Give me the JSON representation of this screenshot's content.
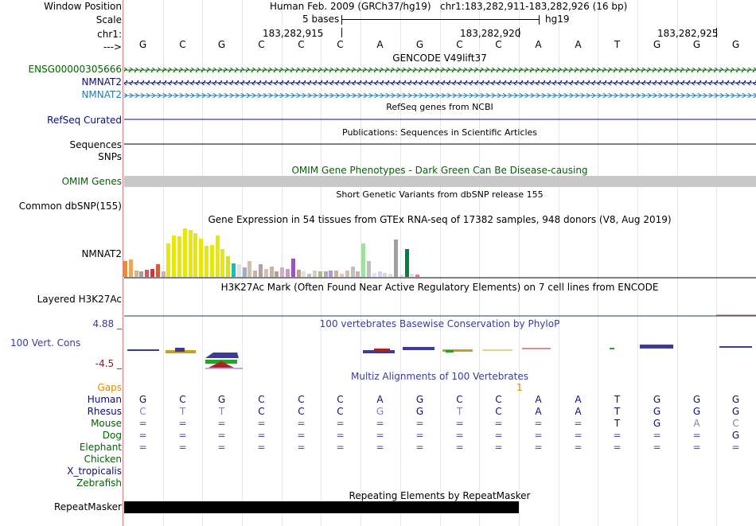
{
  "position": {
    "window_position_label": "Window Position",
    "assembly": "Human Feb. 2009 (GRCh37/hg19)",
    "coords": "chr1:183,282,911-183,282,926 (16 bp)",
    "scale_label": "Scale",
    "scale_value": "5 bases",
    "scale_assembly": "hg19",
    "chrom_label": "chr1:",
    "ticks": [
      "183,282,915",
      "183,282,920",
      "183,282,925"
    ],
    "strand_label": "--->"
  },
  "sequence": [
    "G",
    "C",
    "G",
    "C",
    "C",
    "C",
    "A",
    "G",
    "C",
    "C",
    "A",
    "A",
    "T",
    "G",
    "G",
    "G"
  ],
  "tracks": {
    "gencode": {
      "title": "GENCODE V49lift37",
      "items": [
        "ENSG00000305666",
        "NMNAT2",
        "NMNAT2"
      ],
      "colors": [
        "#006400",
        "#0c0c78",
        "#1e7fb4"
      ]
    },
    "refseq": {
      "title": "RefSeq genes from NCBI",
      "label": "RefSeq Curated"
    },
    "pubs": {
      "title": "Publications: Sequences in Scientific Articles",
      "label": "Sequences"
    },
    "snps": {
      "label": "SNPs"
    },
    "omim": {
      "title": "OMIM Gene Phenotypes - Dark Green Can Be Disease-causing",
      "label": "OMIM Genes",
      "color": "#006400"
    },
    "dbsnp": {
      "title": "Short Genetic Variants from dbSNP release 155",
      "label": "Common dbSNP(155)"
    },
    "gtex": {
      "title": "Gene Expression in 54 tissues from GTEx RNA-seq of 17382 samples, 948 donors (V8, Aug 2019)",
      "label": "NMNAT2",
      "values": [
        0.3,
        0.34,
        0.12,
        0.1,
        0.14,
        0.16,
        0.24,
        0.1,
        0.64,
        0.8,
        0.78,
        0.94,
        0.9,
        0.84,
        0.74,
        0.6,
        0.62,
        0.8,
        0.54,
        0.4,
        0.26,
        0.24,
        0.18,
        0.3,
        0.12,
        0.24,
        0.16,
        0.2,
        0.1,
        0.18,
        0.16,
        0.36,
        0.14,
        0.1,
        0.06,
        0.12,
        0.1,
        0.1,
        0.12,
        0.12,
        0.06,
        0.12,
        0.2,
        0.1,
        0.64,
        0.3,
        0.08,
        0.1,
        0.08,
        0.06,
        0.72,
        0.04,
        0.54,
        0.06,
        0.04
      ],
      "colors": [
        "#f28c28",
        "#f2a65a",
        "#d9b38c",
        "#a0a0a0",
        "#c06060",
        "#e03030",
        "#d06040",
        "#d0b0a0",
        "#e8e800",
        "#e8e800",
        "#e8e800",
        "#e8e800",
        "#e8e800",
        "#e8e800",
        "#e8e800",
        "#e8e800",
        "#e8e800",
        "#e8e800",
        "#e8e800",
        "#d0e040",
        "#00c8c8",
        "#e0e0e0",
        "#a0b0c0",
        "#d0c0b0",
        "#c8b4a0",
        "#b4a0a0",
        "#d0c0b0",
        "#c8b4a0",
        "#b4a0a0",
        "#d0b0c0",
        "#c0a0c0",
        "#a050c0",
        "#c0a080",
        "#e0e0e0",
        "#c0c0c0",
        "#d0d0c0",
        "#a0c080",
        "#c0a0c0",
        "#a0a0e0",
        "#c8b4a0",
        "#e0c0e0",
        "#d0c0b0",
        "#c0c0c0",
        "#c8b4a0",
        "#a0e0a0",
        "#c0c0c0",
        "#e0e0ff",
        "#d0d0ff",
        "#e0d0e0",
        "#e0e0e0",
        "#a0a0a0",
        "#e0e0e0",
        "#008040",
        "#e0e0e0",
        "#ff66cc"
      ]
    },
    "h3k27ac": {
      "title": "H3K27Ac Mark (Often Found Near Active Regulatory Elements) on 7 cell lines from ENCODE",
      "label": "Layered H3K27Ac"
    },
    "cons": {
      "title": "100 vertebrates Basewise Conservation by PhyloP",
      "label": "100 Vert. Cons",
      "max_label": "4.88 _",
      "min_label": "-4.5 _",
      "color": "#3b3b9b",
      "min_color": "#8b1a1a"
    },
    "multiz": {
      "title": "Multiz Alignments of 100 Vertebrates",
      "gaps_label": "Gaps",
      "gap_count": "1",
      "species": [
        {
          "name": "Human",
          "color": "#0c0c78",
          "seq": [
            "G",
            "C",
            "G",
            "C",
            "C",
            "C",
            "A",
            "G",
            "C",
            "C",
            "A",
            "A",
            "T",
            "G",
            "G",
            "G"
          ]
        },
        {
          "name": "Rhesus",
          "color": "#0c0c78",
          "seq": [
            "C",
            "T",
            "T",
            "C",
            "C",
            "C",
            "G",
            "G",
            "T",
            "C",
            "A",
            "A",
            "T",
            "G",
            "G",
            "G"
          ]
        },
        {
          "name": "Mouse",
          "color": "#006400",
          "seq": [
            "=",
            "=",
            "=",
            "=",
            "=",
            "=",
            "=",
            "=",
            "=",
            "=",
            "=",
            "=",
            "T",
            "G",
            "A",
            "C"
          ]
        },
        {
          "name": "Dog",
          "color": "#006400",
          "seq": [
            "=",
            "=",
            "=",
            "=",
            "=",
            "=",
            "=",
            "=",
            "=",
            "=",
            "=",
            "=",
            "=",
            "=",
            "=",
            "G"
          ]
        },
        {
          "name": "Elephant",
          "color": "#006400",
          "seq": [
            "=",
            "=",
            "=",
            "=",
            "=",
            "=",
            "=",
            "=",
            "=",
            "=",
            "=",
            "=",
            "=",
            "=",
            "=",
            "="
          ]
        },
        {
          "name": "Chicken",
          "color": "#006400",
          "seq": []
        },
        {
          "name": "X_tropicalis",
          "color": "#0c0c78",
          "seq": []
        },
        {
          "name": "Zebrafish",
          "color": "#006400",
          "seq": []
        }
      ]
    },
    "repeatmasker": {
      "title": "Repeating Elements by RepeatMasker",
      "label": "RepeatMasker"
    }
  }
}
